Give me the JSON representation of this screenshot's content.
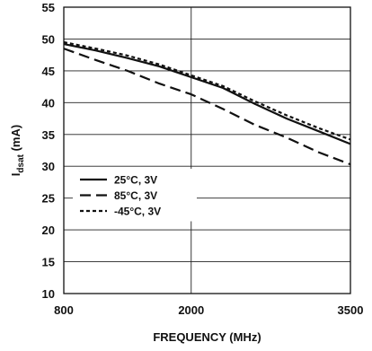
{
  "chart_data": {
    "type": "line",
    "title": "",
    "xlabel": "FREQUENCY (MHz)",
    "ylabel_main": "I",
    "ylabel_sub": "dsat",
    "ylabel_unit": " (mA)",
    "xlim": [
      800,
      3500
    ],
    "ylim": [
      10,
      55
    ],
    "x_ticks": [
      800,
      2000,
      3500
    ],
    "y_ticks": [
      10,
      15,
      20,
      25,
      30,
      35,
      40,
      45,
      50,
      55
    ],
    "grid": true,
    "legend_position": "lower-left",
    "series": [
      {
        "name": "25°C, 3V",
        "style": "solid",
        "x": [
          800,
          1100,
          1400,
          1700,
          2000,
          2300,
          2600,
          2900,
          3200,
          3500
        ],
        "y": [
          49.2,
          48.2,
          47.0,
          45.7,
          44.0,
          42.3,
          39.8,
          37.5,
          35.5,
          33.5
        ]
      },
      {
        "name": "85°C, 3V",
        "style": "dashed",
        "x": [
          800,
          1100,
          1400,
          1700,
          2000,
          2300,
          2600,
          2900,
          3200,
          3500
        ],
        "y": [
          48.5,
          46.7,
          45.0,
          43.0,
          41.3,
          39.0,
          36.5,
          34.5,
          32.2,
          30.3
        ]
      },
      {
        "name": "-45°C, 3V",
        "style": "dotted",
        "x": [
          800,
          1100,
          1400,
          1700,
          2000,
          2300,
          2600,
          2900,
          3200,
          3500
        ],
        "y": [
          49.5,
          48.5,
          47.4,
          46.0,
          44.3,
          42.6,
          40.2,
          38.0,
          36.0,
          34.2
        ]
      }
    ]
  }
}
